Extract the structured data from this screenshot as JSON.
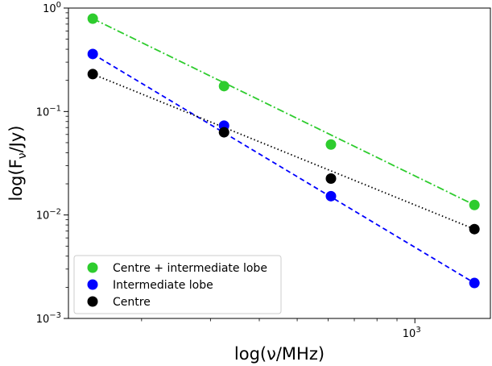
{
  "chart_data": {
    "type": "scatter",
    "title": "",
    "xlabel": "log(ν/MHz)",
    "ylabel": "log(Fν/Jy)",
    "xscale": "log",
    "yscale": "log",
    "xlim": [
      130,
      1560
    ],
    "ylim": [
      0.001,
      1
    ],
    "grid": false,
    "legend_position": "lower-left",
    "x_ticks": [
      {
        "value": 1000,
        "mantissa": "10",
        "exp": "3"
      }
    ],
    "y_ticks": [
      {
        "value": 0.001,
        "mantissa": "10",
        "exp": "−3"
      },
      {
        "value": 0.01,
        "mantissa": "10",
        "exp": "−2"
      },
      {
        "value": 0.1,
        "mantissa": "10",
        "exp": "−1"
      },
      {
        "value": 1,
        "mantissa": "10",
        "exp": "0"
      }
    ],
    "series": [
      {
        "name": "Centre + intermediate lobe",
        "color": "#2ecc2e",
        "line_style": "dashdot",
        "x": [
          150,
          325,
          610,
          1420
        ],
        "y": [
          0.79,
          0.176,
          0.048,
          0.0125
        ],
        "fit_y": [
          0.79,
          0.0125
        ]
      },
      {
        "name": "Intermediate lobe",
        "color": "#0000ff",
        "line_style": "dashed",
        "x": [
          150,
          325,
          610,
          1420
        ],
        "y": [
          0.36,
          0.073,
          0.0152,
          0.0022
        ],
        "fit_y": [
          0.36,
          0.0022
        ]
      },
      {
        "name": "Centre",
        "color": "#000000",
        "line_style": "dotted",
        "x": [
          150,
          325,
          610,
          1420
        ],
        "y": [
          0.23,
          0.063,
          0.0225,
          0.0073
        ],
        "fit_y": [
          0.23,
          0.0073
        ]
      }
    ]
  }
}
